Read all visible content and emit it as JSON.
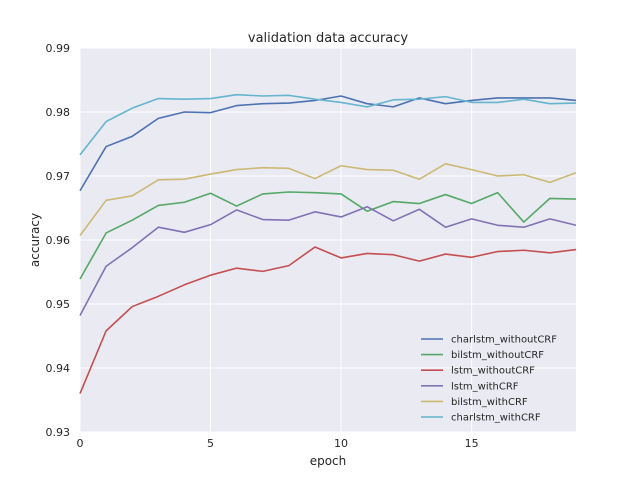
{
  "chart_data": {
    "type": "line",
    "title": "validation data accuracy",
    "xlabel": "epoch",
    "ylabel": "accuracy",
    "xlim": [
      0,
      19
    ],
    "ylim": [
      0.93,
      0.99
    ],
    "xticks": [
      0,
      5,
      10,
      15
    ],
    "xtick_labels": [
      "0",
      "5",
      "10",
      "15"
    ],
    "yticks": [
      0.93,
      0.94,
      0.95,
      0.96,
      0.97,
      0.98,
      0.99
    ],
    "ytick_labels": [
      "0.93",
      "0.94",
      "0.95",
      "0.96",
      "0.97",
      "0.98",
      "0.99"
    ],
    "grid": true,
    "background": "#eaeaf2",
    "legend_position": "lower-right",
    "x": [
      0,
      1,
      2,
      3,
      4,
      5,
      6,
      7,
      8,
      9,
      10,
      11,
      12,
      13,
      14,
      15,
      16,
      17,
      18,
      19
    ],
    "series": [
      {
        "name": "charlstm_withoutCRF",
        "color": "#4c72b0",
        "values": [
          0.9677,
          0.9746,
          0.9762,
          0.979,
          0.98,
          0.9799,
          0.981,
          0.9813,
          0.9814,
          0.9818,
          0.9825,
          0.9813,
          0.9808,
          0.9822,
          0.9813,
          0.9818,
          0.9822,
          0.9822,
          0.9822,
          0.9818
        ]
      },
      {
        "name": "bilstm_withoutCRF",
        "color": "#55a868",
        "values": [
          0.9539,
          0.9611,
          0.9631,
          0.9654,
          0.9659,
          0.9673,
          0.9653,
          0.9672,
          0.9675,
          0.9674,
          0.9672,
          0.9645,
          0.966,
          0.9657,
          0.9671,
          0.9657,
          0.9674,
          0.9628,
          0.9665,
          0.9664
        ]
      },
      {
        "name": "lstm_withoutCRF",
        "color": "#c44e52",
        "values": [
          0.936,
          0.9458,
          0.9496,
          0.9512,
          0.953,
          0.9545,
          0.9556,
          0.9551,
          0.956,
          0.9589,
          0.9572,
          0.9579,
          0.9577,
          0.9567,
          0.9578,
          0.9573,
          0.9582,
          0.9584,
          0.958,
          0.9585
        ]
      },
      {
        "name": "lstm_withCRF",
        "color": "#8172b2",
        "values": [
          0.9482,
          0.9559,
          0.9588,
          0.962,
          0.9612,
          0.9624,
          0.9647,
          0.9632,
          0.9631,
          0.9644,
          0.9636,
          0.9652,
          0.963,
          0.9648,
          0.962,
          0.9633,
          0.9623,
          0.962,
          0.9633,
          0.9623
        ]
      },
      {
        "name": "bilstm_withCRF",
        "color": "#ccb974",
        "values": [
          0.9607,
          0.9662,
          0.9669,
          0.9694,
          0.9695,
          0.9703,
          0.971,
          0.9713,
          0.9712,
          0.9696,
          0.9716,
          0.971,
          0.9709,
          0.9695,
          0.9719,
          0.971,
          0.97,
          0.9702,
          0.969,
          0.9705
        ]
      },
      {
        "name": "charlstm_withCRF",
        "color": "#64b5cd",
        "values": [
          0.9733,
          0.9785,
          0.9806,
          0.9821,
          0.982,
          0.9821,
          0.9827,
          0.9825,
          0.9826,
          0.982,
          0.9815,
          0.9808,
          0.9819,
          0.982,
          0.9824,
          0.9815,
          0.9815,
          0.982,
          0.9813,
          0.9814
        ]
      }
    ]
  }
}
